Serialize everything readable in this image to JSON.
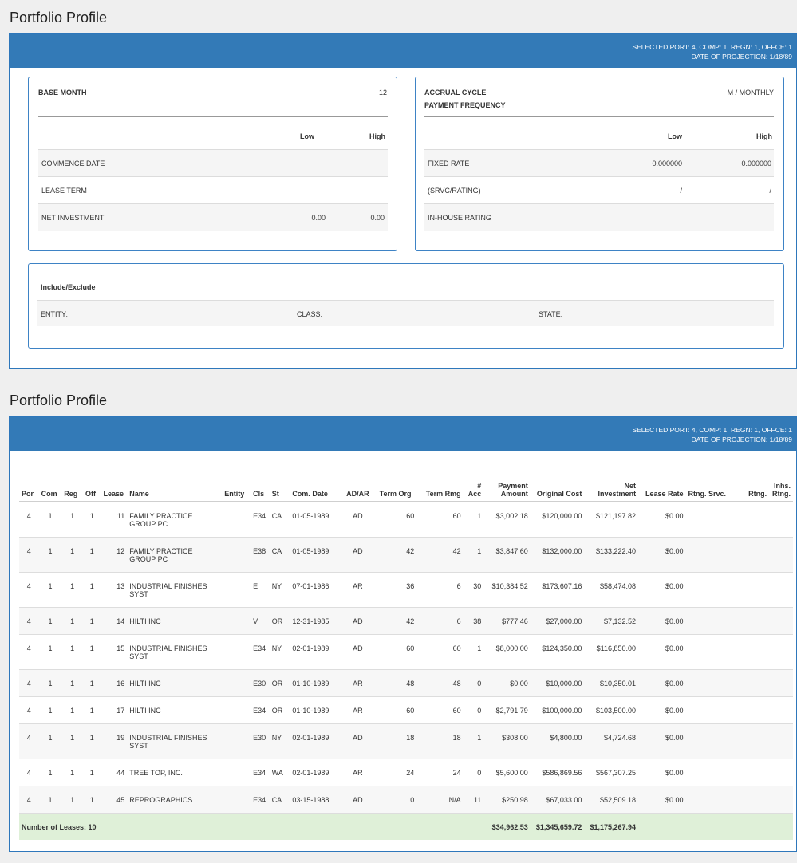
{
  "profile_top": {
    "title": "Portfolio Profile",
    "header_line1": "SELECTED PORT: 4, COMP: 1, REGN: 1, OFFCE: 1",
    "header_line2": "DATE OF PROJECTION: 1/18/89",
    "left_card": {
      "base_month_label": "BASE MONTH",
      "base_month_value": "12",
      "low_label": "Low",
      "high_label": "High",
      "rows": [
        {
          "label": "COMMENCE DATE",
          "low": "",
          "high": ""
        },
        {
          "label": "LEASE TERM",
          "low": "",
          "high": ""
        },
        {
          "label": "NET INVESTMENT",
          "low": "0.00",
          "high": "0.00"
        }
      ]
    },
    "right_card": {
      "accrual_label": "ACCRUAL CYCLE",
      "accrual_value": "M / MONTHLY",
      "payment_freq_label": "PAYMENT FREQUENCY",
      "low_label": "Low",
      "high_label": "High",
      "rows": [
        {
          "label": "FIXED RATE",
          "low": "0.000000",
          "high": "0.000000"
        },
        {
          "label": "(SRVC/RATING)",
          "low": "/",
          "high": "/"
        },
        {
          "label": "IN-HOUSE RATING",
          "low": "",
          "high": ""
        }
      ]
    },
    "include_exclude": {
      "title": "Include/Exclude",
      "entity_label": "ENTITY:",
      "class_label": "CLASS:",
      "state_label": "STATE:"
    }
  },
  "profile_bottom": {
    "title": "Portfolio Profile",
    "header_line1": "SELECTED PORT: 4, COMP: 1, REGN: 1, OFFCE: 1",
    "header_line2": "DATE OF PROJECTION: 1/18/89",
    "columns": [
      "Por",
      "Com",
      "Reg",
      "Off",
      "Lease",
      "Name",
      "Entity",
      "Cls",
      "St",
      "Com. Date",
      "AD/AR",
      "Term Org",
      "Term Rmg",
      "# Acc",
      "Payment Amount",
      "Original Cost",
      "Net Investment",
      "Lease Rate",
      "Rtng. Srvc.",
      "Rtng.",
      "Inhs. Rtng."
    ],
    "rows": [
      {
        "por": "4",
        "com": "1",
        "reg": "1",
        "off": "1",
        "lease": "11",
        "name": "FAMILY PRACTICE GROUP PC",
        "entity": "",
        "cls": "E34",
        "st": "CA",
        "date": "01-05-1989",
        "adar": "AD",
        "term_org": "60",
        "term_rmg": "60",
        "acc": "1",
        "payment": "$3,002.18",
        "cost": "$120,000.00",
        "net": "$121,197.82",
        "rate": "$0.00",
        "rtng_srvc": "",
        "rtng": "",
        "inhs": ""
      },
      {
        "por": "4",
        "com": "1",
        "reg": "1",
        "off": "1",
        "lease": "12",
        "name": "FAMILY PRACTICE GROUP PC",
        "entity": "",
        "cls": "E38",
        "st": "CA",
        "date": "01-05-1989",
        "adar": "AD",
        "term_org": "42",
        "term_rmg": "42",
        "acc": "1",
        "payment": "$3,847.60",
        "cost": "$132,000.00",
        "net": "$133,222.40",
        "rate": "$0.00",
        "rtng_srvc": "",
        "rtng": "",
        "inhs": ""
      },
      {
        "por": "4",
        "com": "1",
        "reg": "1",
        "off": "1",
        "lease": "13",
        "name": "INDUSTRIAL FINISHES SYST",
        "entity": "",
        "cls": "E",
        "st": "NY",
        "date": "07-01-1986",
        "adar": "AR",
        "term_org": "36",
        "term_rmg": "6",
        "acc": "30",
        "payment": "$10,384.52",
        "cost": "$173,607.16",
        "net": "$58,474.08",
        "rate": "$0.00",
        "rtng_srvc": "",
        "rtng": "",
        "inhs": ""
      },
      {
        "por": "4",
        "com": "1",
        "reg": "1",
        "off": "1",
        "lease": "14",
        "name": "HILTI INC",
        "entity": "",
        "cls": "V",
        "st": "OR",
        "date": "12-31-1985",
        "adar": "AD",
        "term_org": "42",
        "term_rmg": "6",
        "acc": "38",
        "payment": "$777.46",
        "cost": "$27,000.00",
        "net": "$7,132.52",
        "rate": "$0.00",
        "rtng_srvc": "",
        "rtng": "",
        "inhs": ""
      },
      {
        "por": "4",
        "com": "1",
        "reg": "1",
        "off": "1",
        "lease": "15",
        "name": "INDUSTRIAL FINISHES SYST",
        "entity": "",
        "cls": "E34",
        "st": "NY",
        "date": "02-01-1989",
        "adar": "AD",
        "term_org": "60",
        "term_rmg": "60",
        "acc": "1",
        "payment": "$8,000.00",
        "cost": "$124,350.00",
        "net": "$116,850.00",
        "rate": "$0.00",
        "rtng_srvc": "",
        "rtng": "",
        "inhs": ""
      },
      {
        "por": "4",
        "com": "1",
        "reg": "1",
        "off": "1",
        "lease": "16",
        "name": "HILTI INC",
        "entity": "",
        "cls": "E30",
        "st": "OR",
        "date": "01-10-1989",
        "adar": "AR",
        "term_org": "48",
        "term_rmg": "48",
        "acc": "0",
        "payment": "$0.00",
        "cost": "$10,000.00",
        "net": "$10,350.01",
        "rate": "$0.00",
        "rtng_srvc": "",
        "rtng": "",
        "inhs": ""
      },
      {
        "por": "4",
        "com": "1",
        "reg": "1",
        "off": "1",
        "lease": "17",
        "name": "HILTI INC",
        "entity": "",
        "cls": "E34",
        "st": "OR",
        "date": "01-10-1989",
        "adar": "AR",
        "term_org": "60",
        "term_rmg": "60",
        "acc": "0",
        "payment": "$2,791.79",
        "cost": "$100,000.00",
        "net": "$103,500.00",
        "rate": "$0.00",
        "rtng_srvc": "",
        "rtng": "",
        "inhs": ""
      },
      {
        "por": "4",
        "com": "1",
        "reg": "1",
        "off": "1",
        "lease": "19",
        "name": "INDUSTRIAL FINISHES SYST",
        "entity": "",
        "cls": "E30",
        "st": "NY",
        "date": "02-01-1989",
        "adar": "AD",
        "term_org": "18",
        "term_rmg": "18",
        "acc": "1",
        "payment": "$308.00",
        "cost": "$4,800.00",
        "net": "$4,724.68",
        "rate": "$0.00",
        "rtng_srvc": "",
        "rtng": "",
        "inhs": ""
      },
      {
        "por": "4",
        "com": "1",
        "reg": "1",
        "off": "1",
        "lease": "44",
        "name": "TREE TOP, INC.",
        "entity": "",
        "cls": "E34",
        "st": "WA",
        "date": "02-01-1989",
        "adar": "AR",
        "term_org": "24",
        "term_rmg": "24",
        "acc": "0",
        "payment": "$5,600.00",
        "cost": "$586,869.56",
        "net": "$567,307.25",
        "rate": "$0.00",
        "rtng_srvc": "",
        "rtng": "",
        "inhs": ""
      },
      {
        "por": "4",
        "com": "1",
        "reg": "1",
        "off": "1",
        "lease": "45",
        "name": "REPROGRAPHICS",
        "entity": "",
        "cls": "E34",
        "st": "CA",
        "date": "03-15-1988",
        "adar": "AD",
        "term_org": "0",
        "term_rmg": "N/A",
        "acc": "11",
        "payment": "$250.98",
        "cost": "$67,033.00",
        "net": "$52,509.18",
        "rate": "$0.00",
        "rtng_srvc": "",
        "rtng": "",
        "inhs": ""
      }
    ],
    "totals": {
      "label": "Number of Leases: 10",
      "payment": "$34,962.53",
      "cost": "$1,345,659.72",
      "net": "$1,175,267.94"
    },
    "colors": {
      "header": "#337ab7",
      "totals_row": "#dff0d8"
    }
  }
}
